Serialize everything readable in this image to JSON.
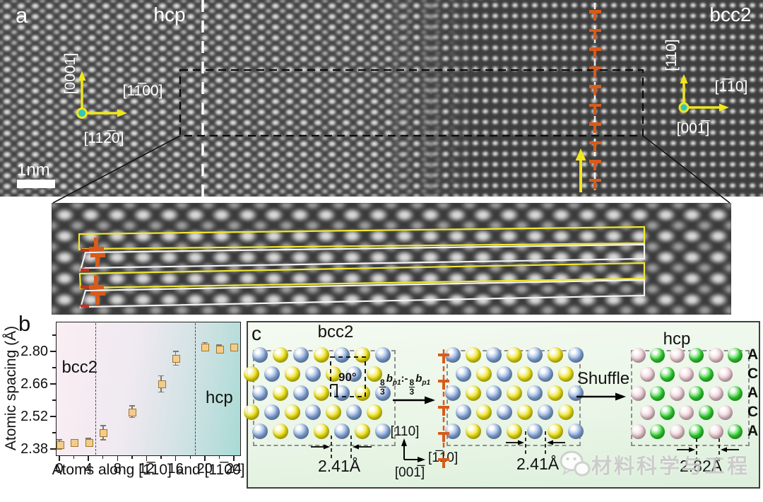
{
  "panel_a": {
    "label": "a",
    "region_left": "hcp",
    "region_right": "bcc2",
    "scale_bar": "1nm",
    "hcp_axes": {
      "v": "[0001]",
      "h": "[11̅00]",
      "zone": "[112̅0]"
    },
    "bcc_axes": {
      "v": "[110]",
      "h": "[1̅10]",
      "zone": "[001̅]"
    },
    "dislocation_chain_count": 10
  },
  "inset": {
    "dislocations": [
      "inv",
      "t",
      "inv",
      "t"
    ]
  },
  "panel_b": {
    "label": "b"
  },
  "chart_data": {
    "type": "scatter",
    "title": "",
    "xlabel": "Atoms along [1̅10] and [11̅00]",
    "ylabel": "Atomic spacing (Å)",
    "xlim": [
      -0.5,
      25
    ],
    "ylim": [
      2.35,
      2.93
    ],
    "xticks": [
      0,
      4,
      8,
      12,
      16,
      20,
      24
    ],
    "x_minor_ticks": [
      2,
      6,
      10,
      14,
      18,
      22
    ],
    "yticks": [
      2.38,
      2.52,
      2.66,
      2.8
    ],
    "y_minor_ticks": [
      2.45,
      2.59,
      2.73,
      2.87
    ],
    "grid": false,
    "points": [
      {
        "x": 0,
        "y": 2.4,
        "e": 0.02
      },
      {
        "x": 2,
        "y": 2.41,
        "e": 0.01
      },
      {
        "x": 4,
        "y": 2.41,
        "e": 0.015
      },
      {
        "x": 6,
        "y": 2.45,
        "e": 0.03
      },
      {
        "x": 10,
        "y": 2.54,
        "e": 0.025
      },
      {
        "x": 14,
        "y": 2.66,
        "e": 0.035
      },
      {
        "x": 16,
        "y": 2.77,
        "e": 0.03
      },
      {
        "x": 20,
        "y": 2.82,
        "e": 0.018
      },
      {
        "x": 22,
        "y": 2.81,
        "e": 0.018
      },
      {
        "x": 24,
        "y": 2.82,
        "e": 0.008
      }
    ],
    "boundaries_x": [
      5,
      18.7
    ],
    "regions": [
      {
        "label": "bcc2",
        "x": 2.8,
        "y": 2.73
      },
      {
        "label": "hcp",
        "x": 22,
        "y": 2.6
      }
    ],
    "marker": {
      "shape": "square",
      "fill": "#f4cc8a",
      "edge": "#a0762f"
    }
  },
  "panel_c": {
    "label": "c",
    "bcc2_title": "bcc2",
    "hcp_title": "hcp",
    "shuffle": "Shuffle",
    "angle": "90°",
    "shear": {
      "n1": "8",
      "d1": "3",
      "b1": "b",
      "s1": "p1",
      "mid": ":-",
      "n2": "8",
      "d2": "3",
      "b2": "b",
      "s2": "p1"
    },
    "axes": {
      "v": "[110]",
      "h": "[1̅10]",
      "zone": "[001̅]"
    },
    "spacing_left": "2.41Å",
    "spacing_mid": "2.41Å",
    "spacing_right": "2.82Å",
    "stacking": [
      "A",
      "C",
      "A",
      "C",
      "A"
    ],
    "dislocation_count": 5,
    "atom_colors": {
      "B": "#87a9dd",
      "Y": "#f0e414",
      "P": "#f2cfd8",
      "G": "#30d330"
    },
    "lattices": {
      "bcc2": {
        "rows": [
          {
            "o": 0,
            "c": "BYBYBYB"
          },
          {
            "o": -0.4,
            "c": "YBYBYBY"
          },
          {
            "o": 0,
            "c": "BYBYBYB"
          },
          {
            "o": -0.4,
            "c": "YBYBYBY"
          },
          {
            "o": 0,
            "c": "BYBYBYB"
          }
        ]
      },
      "mid": {
        "rows": [
          {
            "o": 0,
            "c": "BYBYBYB"
          },
          {
            "o": 0.5,
            "c": "BYBYBY"
          },
          {
            "o": 0,
            "c": "BYBYBYB"
          },
          {
            "o": 0.5,
            "c": "BYBYBY"
          },
          {
            "o": 0,
            "c": "BYBYBYB"
          }
        ]
      },
      "hcp": {
        "rows": [
          {
            "o": 0,
            "c": "PGPGPG"
          },
          {
            "o": 0.5,
            "c": "PGPGP"
          },
          {
            "o": 0,
            "c": "PGPGPG"
          },
          {
            "o": 0.5,
            "c": "PGPGP"
          },
          {
            "o": 0,
            "c": "PGPGPG"
          }
        ]
      }
    }
  },
  "watermark": {
    "text": "材料科学与工程"
  }
}
